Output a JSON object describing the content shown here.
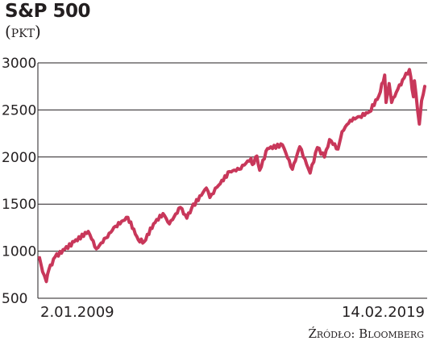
{
  "title": "S&P 500",
  "subtitle": "(pkt)",
  "source": "Źródło: Bloomberg",
  "colors": {
    "line": "#c8375a",
    "grid": "#231f20"
  },
  "chart_data": {
    "type": "line",
    "title": "S&P 500",
    "ylabel": "(pkt)",
    "ylim": [
      500,
      3000
    ],
    "yticks": [
      500,
      1000,
      1500,
      2000,
      2500,
      3000
    ],
    "ytick_labels": [
      "500",
      "1000",
      "1500",
      "2000",
      "2500",
      "3000"
    ],
    "x_start_label": "2.01.2009",
    "x_end_label": "14.02.2019",
    "grid": true,
    "legend": "none",
    "series": [
      {
        "x": [
          "2009-01-02",
          "2009-02-01",
          "2009-03-09",
          "2009-04-01",
          "2009-06-01",
          "2009-09-01",
          "2009-12-01",
          "2010-04-15",
          "2010-07-02",
          "2010-10-01",
          "2011-01-01",
          "2011-04-29",
          "2011-08-08",
          "2011-10-03",
          "2012-01-01",
          "2012-04-01",
          "2012-06-01",
          "2012-09-14",
          "2012-11-15",
          "2013-01-01",
          "2013-05-21",
          "2013-06-24",
          "2013-09-01",
          "2013-12-31",
          "2014-04-01",
          "2014-07-24",
          "2014-08-07",
          "2014-09-18",
          "2014-10-15",
          "2014-12-29",
          "2015-05-21",
          "2015-08-25",
          "2015-11-03",
          "2016-02-11",
          "2016-04-20",
          "2016-06-27",
          "2016-08-15",
          "2016-11-04",
          "2016-12-13",
          "2017-03-01",
          "2017-06-01",
          "2017-09-01",
          "2017-12-01",
          "2018-01-26",
          "2018-02-08",
          "2018-03-09",
          "2018-04-02",
          "2018-06-01",
          "2018-08-01",
          "2018-09-20",
          "2018-10-29",
          "2018-11-07",
          "2018-12-24",
          "2019-01-15",
          "2019-02-14"
        ],
        "y": [
          931,
          780,
          677,
          800,
          940,
          1020,
          1100,
          1210,
          1025,
          1140,
          1265,
          1360,
          1120,
          1100,
          1290,
          1400,
          1290,
          1465,
          1350,
          1460,
          1670,
          1570,
          1680,
          1845,
          1870,
          1985,
          1920,
          2010,
          1860,
          2090,
          2130,
          1870,
          2110,
          1830,
          2100,
          2000,
          2185,
          2085,
          2270,
          2390,
          2430,
          2480,
          2650,
          2870,
          2580,
          2780,
          2580,
          2720,
          2840,
          2930,
          2640,
          2810,
          2350,
          2600,
          2750
        ]
      }
    ]
  }
}
